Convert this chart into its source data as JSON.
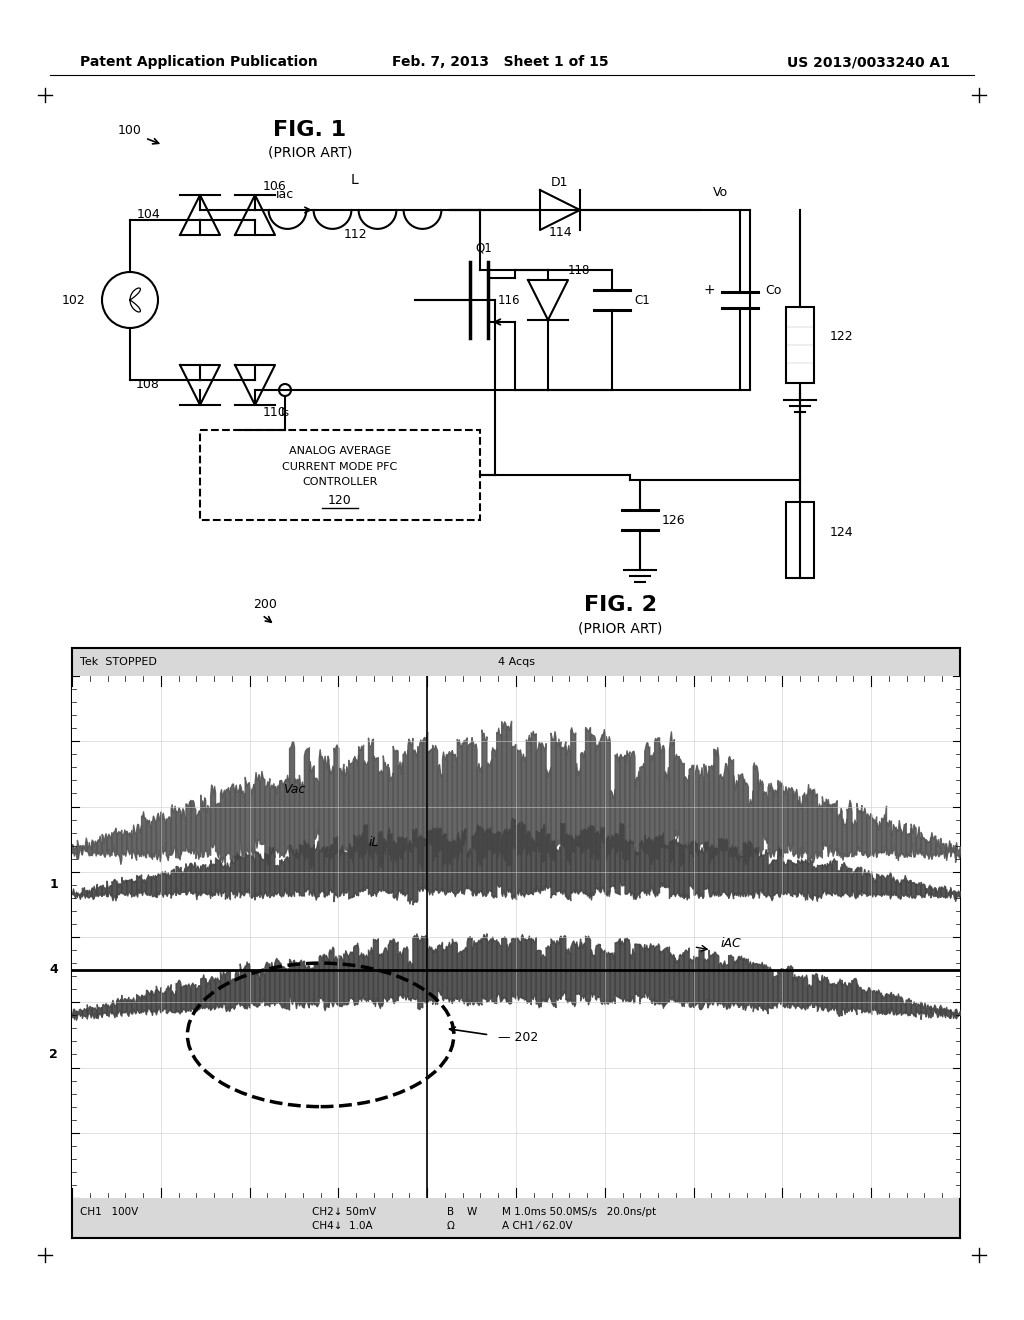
{
  "page_header": {
    "left": "Patent Application Publication",
    "center": "Feb. 7, 2013   Sheet 1 of 15",
    "right": "US 2013/0033240 A1"
  },
  "background": "#ffffff",
  "fig1_title": "FIG. 1",
  "fig1_subtitle": "(PRIOR ART)",
  "fig1_label": "100",
  "fig2_title": "FIG. 2",
  "fig2_subtitle": "(PRIOR ART)",
  "fig2_label": "200",
  "osc_header_left": "Tek  STOPPED",
  "osc_header_center": "4 Acqs",
  "osc_bot1": "CH1   100V",
  "osc_bot2": "CH2↓ 50mV",
  "osc_bot3": "B",
  "osc_bot4": "W",
  "osc_bot5": "M 1.0ms 50.0MS/s   20.0ns/pt",
  "osc_bot6": "CH4↓  1.0A",
  "osc_bot7": "Ω",
  "osc_bot8": "A CH1 ⁄ 62.0V"
}
